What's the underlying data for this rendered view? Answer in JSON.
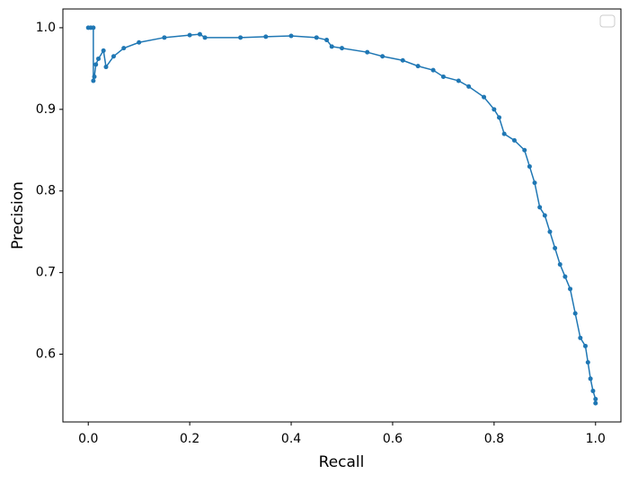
{
  "chart_data": {
    "type": "line",
    "xlabel": "Recall",
    "ylabel": "Precision",
    "x": [
      0,
      0.005,
      0.01,
      0.01,
      0.012,
      0.015,
      0.02,
      0.03,
      0.035,
      0.05,
      0.07,
      0.1,
      0.15,
      0.2,
      0.22,
      0.23,
      0.3,
      0.35,
      0.4,
      0.45,
      0.47,
      0.48,
      0.5,
      0.55,
      0.58,
      0.62,
      0.65,
      0.68,
      0.7,
      0.73,
      0.75,
      0.78,
      0.8,
      0.81,
      0.82,
      0.84,
      0.86,
      0.87,
      0.88,
      0.89,
      0.9,
      0.91,
      0.92,
      0.93,
      0.94,
      0.95,
      0.96,
      0.97,
      0.98,
      0.985,
      0.99,
      0.995,
      1,
      1
    ],
    "values": [
      1,
      1,
      1,
      0.935,
      0.94,
      0.955,
      0.962,
      0.972,
      0.952,
      0.965,
      0.975,
      0.982,
      0.988,
      0.991,
      0.992,
      0.988,
      0.988,
      0.989,
      0.99,
      0.988,
      0.985,
      0.977,
      0.975,
      0.97,
      0.965,
      0.96,
      0.953,
      0.948,
      0.94,
      0.935,
      0.928,
      0.915,
      0.9,
      0.89,
      0.87,
      0.862,
      0.85,
      0.83,
      0.81,
      0.78,
      0.77,
      0.75,
      0.73,
      0.71,
      0.695,
      0.68,
      0.65,
      0.62,
      0.61,
      0.59,
      0.57,
      0.555,
      0.545,
      0.54
    ],
    "color": "#1f77b4",
    "xlim": [
      -0.05,
      1.05
    ],
    "ylim": [
      0.517,
      1.023
    ],
    "xticks": [
      {
        "value": 0,
        "label": "0.0"
      },
      0.2,
      0.4,
      0.6,
      0.8,
      {
        "value": 1,
        "label": "1.0"
      }
    ],
    "yticks": [
      0.6,
      0.7,
      0.8,
      0.9,
      {
        "value": 1,
        "label": "1.0"
      }
    ],
    "grid": false
  }
}
